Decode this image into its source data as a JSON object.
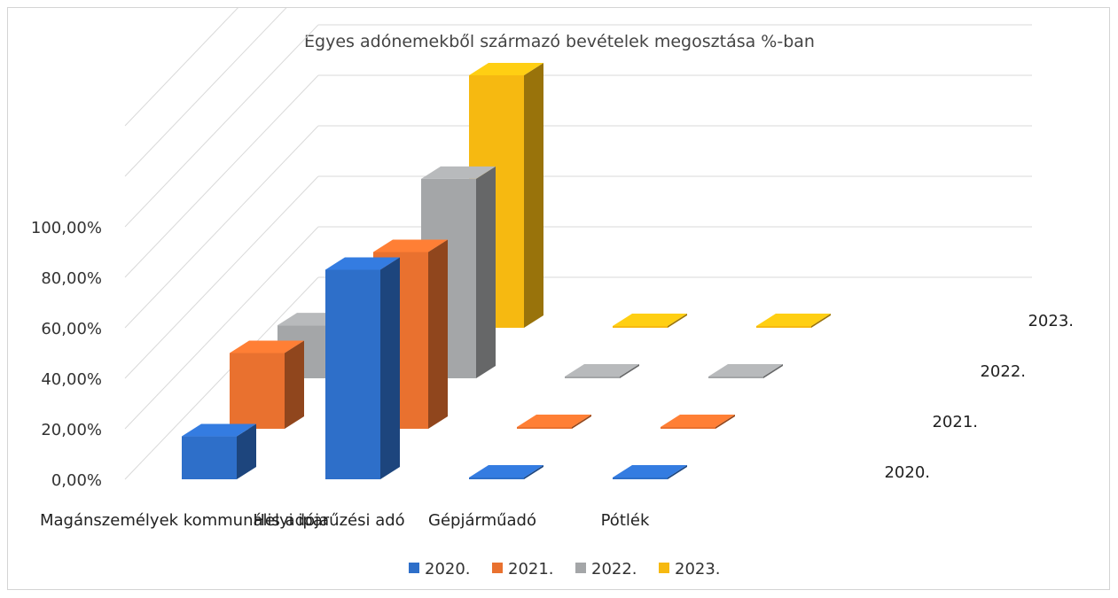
{
  "chart_data": {
    "type": "bar",
    "variant": "3d-column",
    "title": "Egyes adónemekből származó bevételek megosztása %-ban",
    "categories": [
      "Magánszemélyek kommunális adója",
      "Helyi iparűzési adó",
      "Gépjárműadó",
      "Pótlék"
    ],
    "series": [
      {
        "name": "2020.",
        "color": "#2E6FC9",
        "values": [
          17.0,
          83.0,
          0.0,
          0.0
        ]
      },
      {
        "name": "2021.",
        "color": "#E9712F",
        "values": [
          30.0,
          70.0,
          0.0,
          0.0
        ]
      },
      {
        "name": "2022.",
        "color": "#A4A6A8",
        "values": [
          21.0,
          79.0,
          0.0,
          0.2
        ]
      },
      {
        "name": "2023.",
        "color": "#F6B911",
        "values": [
          0.0,
          100.0,
          0.0,
          0.2
        ]
      }
    ],
    "ylim": [
      0,
      100
    ],
    "yticks": [
      "0,00%",
      "20,00%",
      "40,00%",
      "60,00%",
      "80,00%",
      "100,00%"
    ],
    "depth_labels": [
      "2020.",
      "2021.",
      "2022.",
      "2023."
    ],
    "grid": true,
    "legend": "bottom"
  }
}
